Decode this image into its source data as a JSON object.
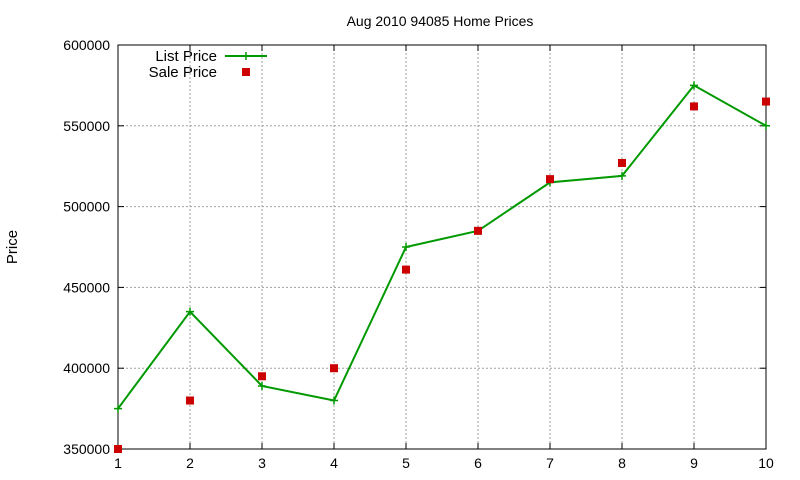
{
  "chart_data": {
    "type": "line",
    "title": "Aug 2010 94085 Home Prices",
    "xlabel": "",
    "ylabel": "Price",
    "x": [
      1,
      2,
      3,
      4,
      5,
      6,
      7,
      8,
      9,
      10
    ],
    "xlim": [
      1,
      10
    ],
    "ylim": [
      350000,
      600000
    ],
    "xticks": [
      1,
      2,
      3,
      4,
      5,
      6,
      7,
      8,
      9,
      10
    ],
    "yticks": [
      350000,
      400000,
      450000,
      500000,
      550000,
      600000
    ],
    "grid": true,
    "legend_position": "top-left",
    "series": [
      {
        "name": "List Price",
        "style": "linespoints",
        "marker": "plus",
        "color": "#009900",
        "values": [
          375000,
          435000,
          389000,
          380000,
          475000,
          485000,
          515000,
          519000,
          575000,
          550000
        ]
      },
      {
        "name": "Sale Price",
        "style": "points",
        "marker": "square",
        "color": "#cc0000",
        "values": [
          350000,
          380000,
          395000,
          400000,
          461000,
          485000,
          517000,
          527000,
          562000,
          565000
        ]
      }
    ]
  }
}
